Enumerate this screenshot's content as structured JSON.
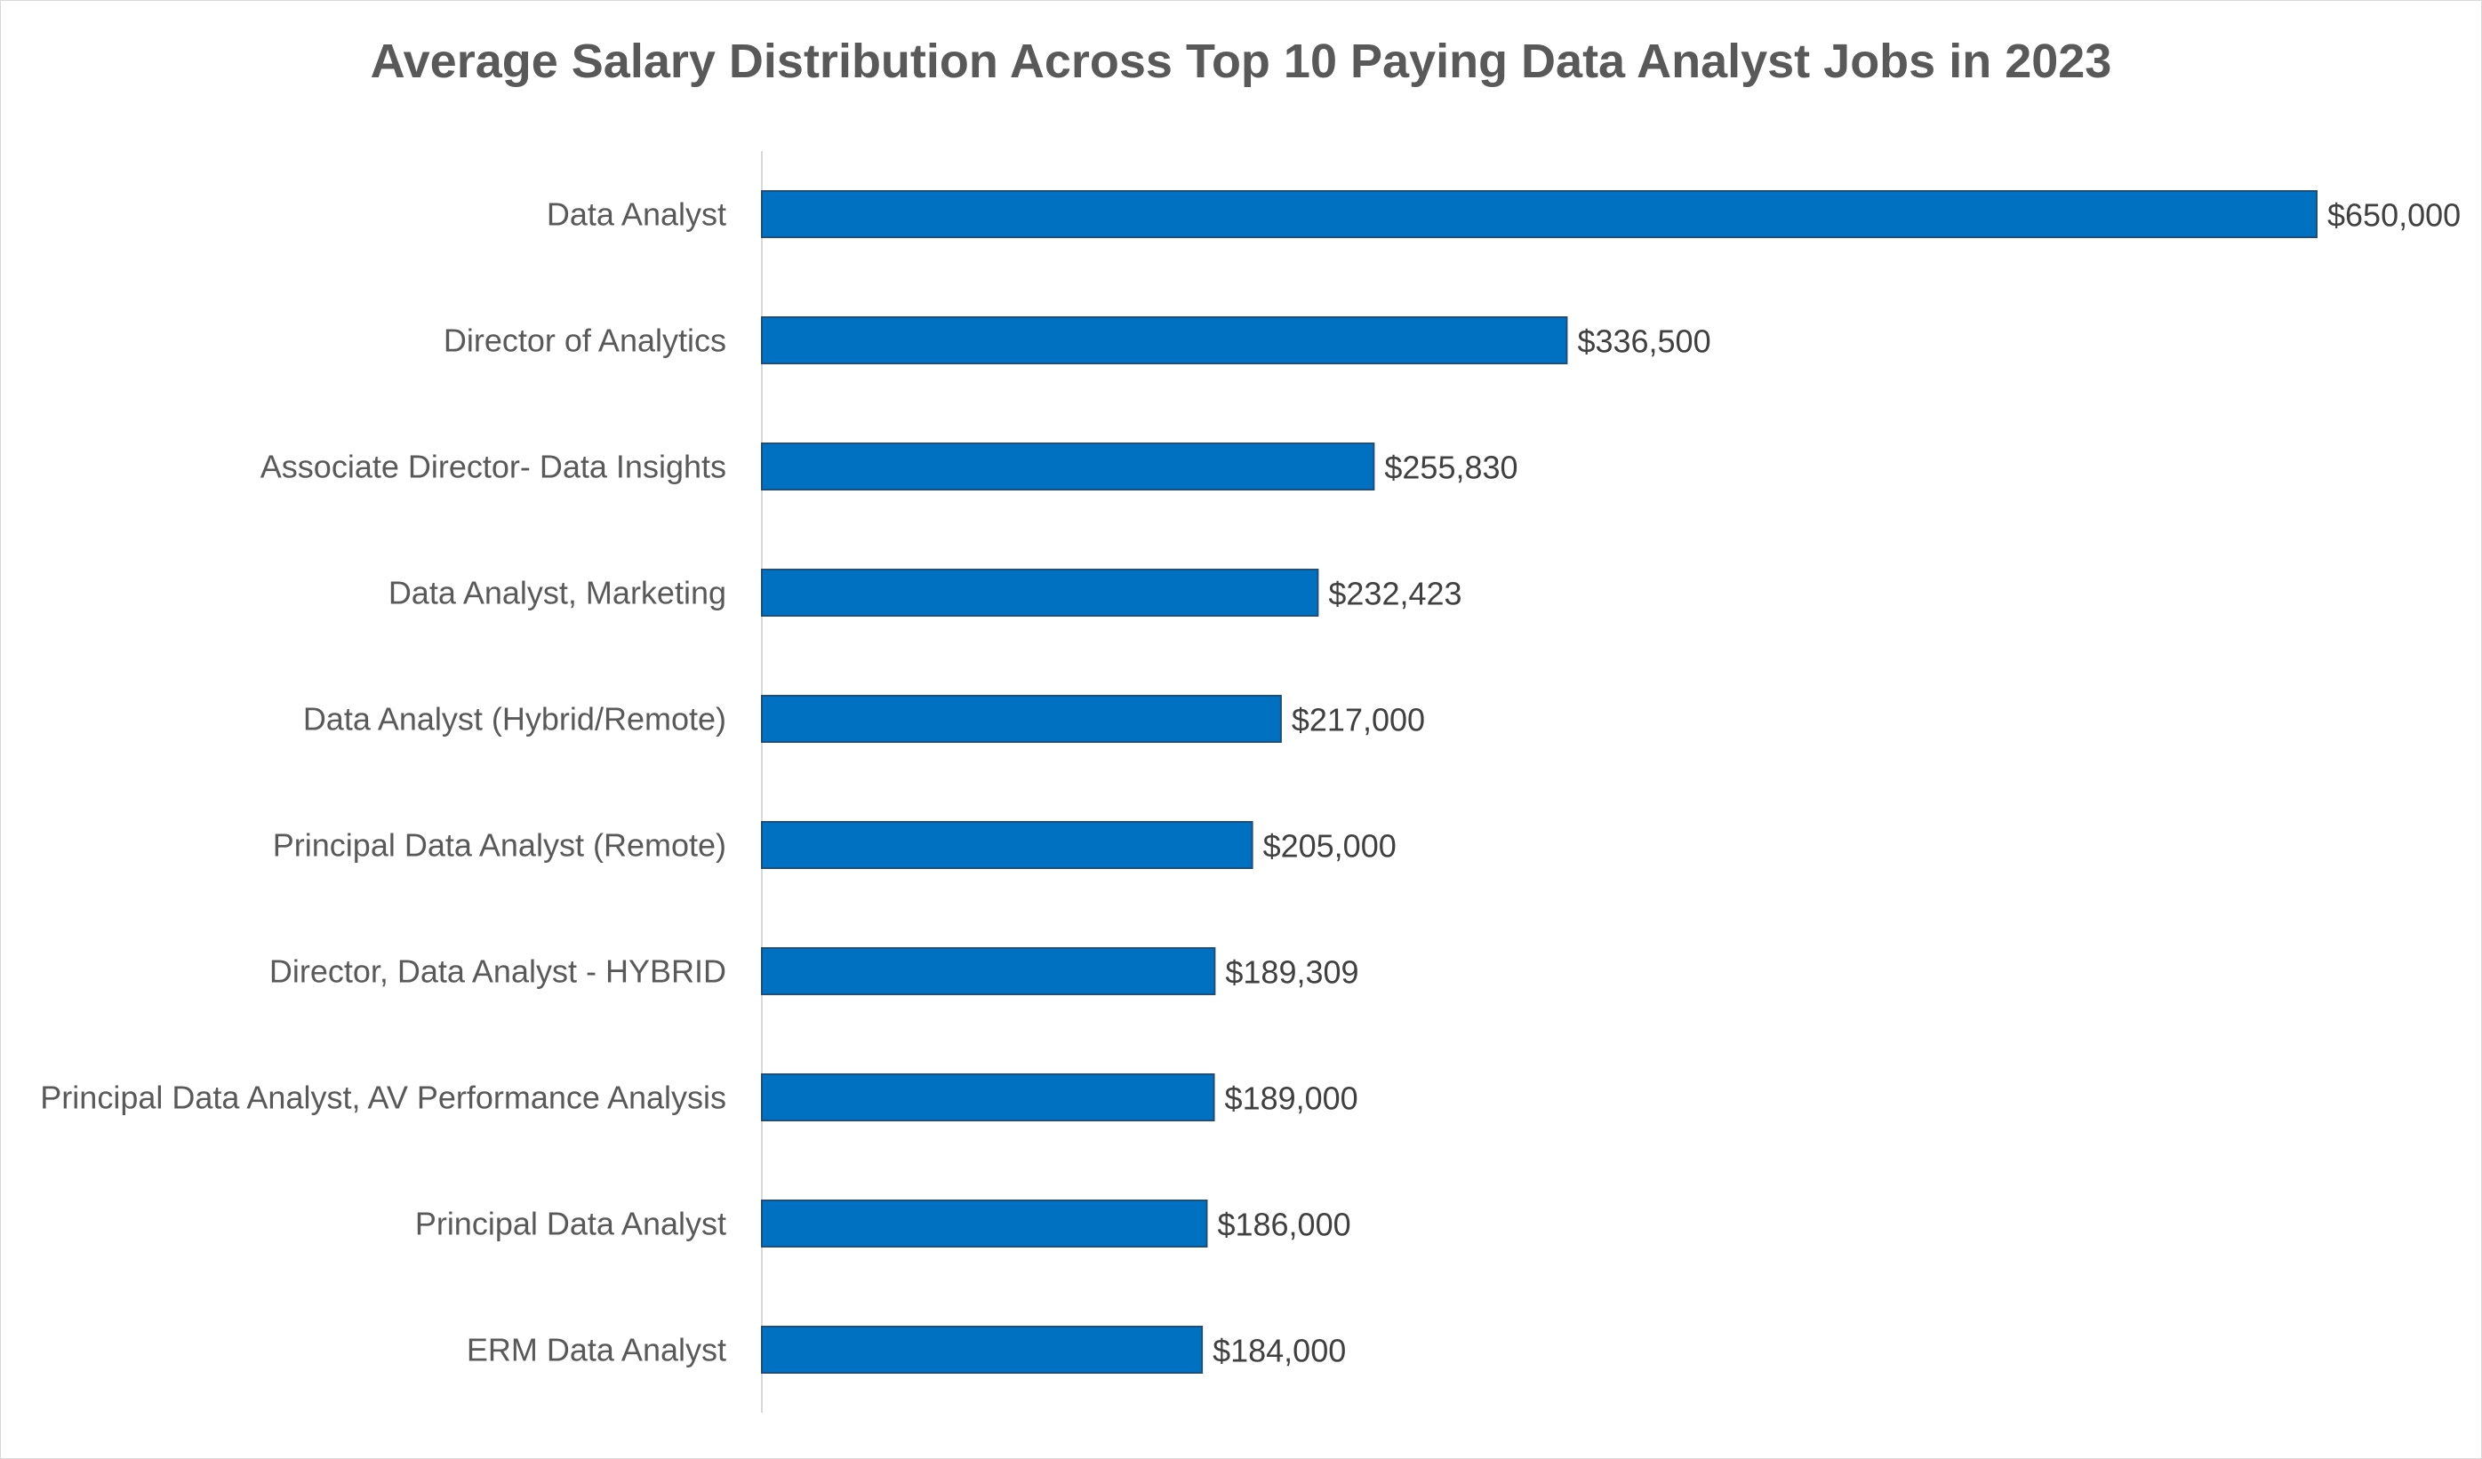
{
  "chart_data": {
    "type": "bar",
    "orientation": "horizontal",
    "title": "Average Salary Distribution Across Top 10 Paying Data Analyst Jobs in 2023",
    "categories": [
      "Data Analyst",
      "Director of Analytics",
      "Associate Director- Data Insights",
      "Data Analyst, Marketing",
      "Data Analyst (Hybrid/Remote)",
      "Principal Data Analyst (Remote)",
      "Director, Data Analyst - HYBRID",
      "Principal Data Analyst, AV Performance Analysis",
      "Principal Data Analyst",
      "ERM Data Analyst"
    ],
    "values": [
      650000,
      336500,
      255830,
      232423,
      217000,
      205000,
      189309,
      189000,
      186000,
      184000
    ],
    "data_labels": [
      "$650,000",
      "$336,500",
      "$255,830",
      "$232,423",
      "$217,000",
      "$205,000",
      "$189,309",
      "$189,000",
      "$186,000",
      "$184,000"
    ],
    "xlim": [
      0,
      650000
    ],
    "xlabel": "",
    "ylabel": "",
    "grid": false,
    "legend": "none",
    "colors": {
      "bar_fill": "#0070C0",
      "bar_stroke": "#1F4E79",
      "axis": "#D9D9D9",
      "title": "#595959",
      "category_label": "#595959",
      "data_label": "#404040"
    }
  }
}
